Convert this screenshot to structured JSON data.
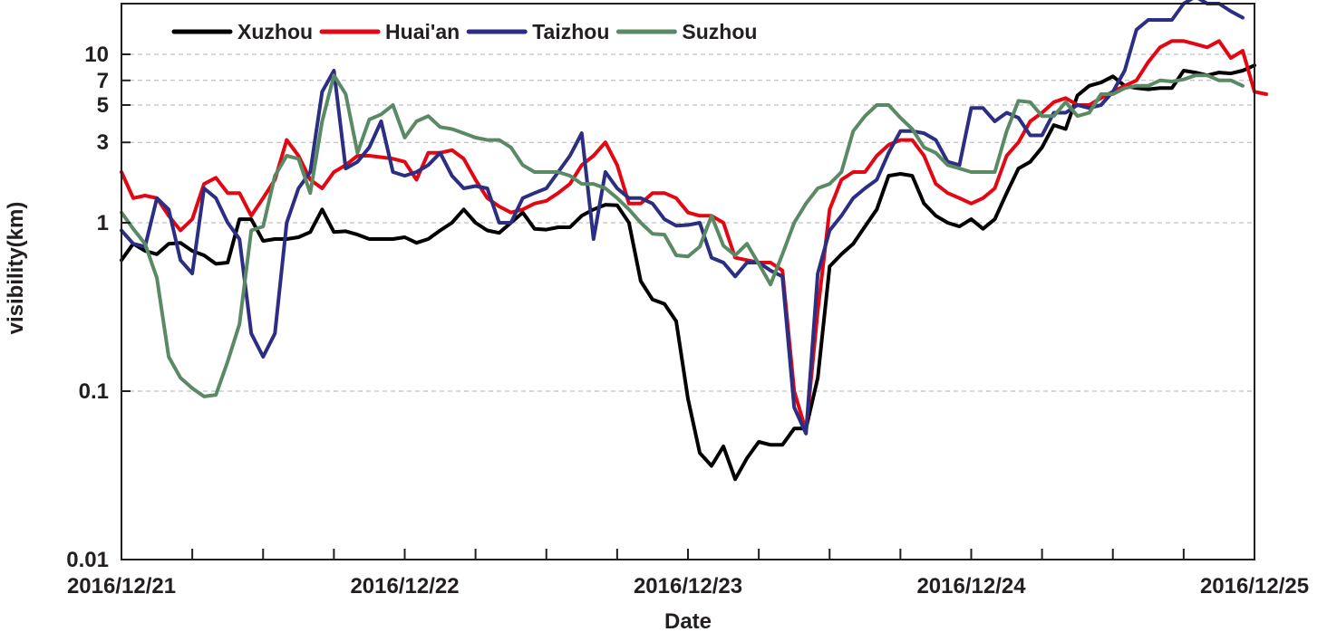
{
  "chart_data": {
    "type": "line",
    "title": "",
    "xlabel": "Date",
    "ylabel": "visibility(km)",
    "y_scale": "log",
    "ylim": [
      0.01,
      20
    ],
    "xlim": [
      0,
      96
    ],
    "x_unit": "hours from 2016/12/21 00:00",
    "grid": "horizontal dashed at 0.1, 1, 3, 5, 7, 10",
    "legend_position": "top-left",
    "x_ticks": [
      {
        "pos": 0,
        "label": "2016/12/21"
      },
      {
        "pos": 24,
        "label": "2016/12/22"
      },
      {
        "pos": 48,
        "label": "2016/12/23"
      },
      {
        "pos": 72,
        "label": "2016/12/24"
      },
      {
        "pos": 96,
        "label": "2016/12/25"
      }
    ],
    "x_minor_ticks": [
      6,
      12,
      18,
      30,
      36,
      42,
      54,
      60,
      66,
      78,
      84,
      90
    ],
    "y_ticks": [
      {
        "value": 0.01,
        "label": "0.01"
      },
      {
        "value": 0.1,
        "label": "0.1"
      },
      {
        "value": 1,
        "label": "1"
      },
      {
        "value": 3,
        "label": "3"
      },
      {
        "value": 5,
        "label": "5"
      },
      {
        "value": 7,
        "label": "7"
      },
      {
        "value": 10,
        "label": "10"
      }
    ],
    "series": [
      {
        "name": "Xuzhou",
        "color": "#000000",
        "values": [
          0.6,
          0.75,
          0.68,
          0.65,
          0.75,
          0.76,
          0.68,
          0.64,
          0.57,
          0.58,
          1.05,
          1.05,
          0.78,
          0.8,
          0.8,
          0.82,
          0.88,
          1.2,
          0.88,
          0.89,
          0.85,
          0.8,
          0.8,
          0.8,
          0.82,
          0.76,
          0.8,
          0.9,
          1.0,
          1.2,
          1.0,
          0.9,
          0.87,
          1.0,
          1.15,
          0.92,
          0.91,
          0.94,
          0.94,
          1.1,
          1.2,
          1.28,
          1.27,
          1.0,
          0.45,
          0.35,
          0.33,
          0.26,
          0.09,
          0.043,
          0.036,
          0.047,
          0.03,
          0.04,
          0.05,
          0.048,
          0.048,
          0.06,
          0.06,
          0.12,
          0.55,
          0.65,
          0.75,
          0.95,
          1.2,
          1.9,
          1.95,
          1.9,
          1.3,
          1.1,
          1.0,
          0.95,
          1.05,
          0.92,
          1.05,
          1.5,
          2.1,
          2.3,
          2.8,
          3.8,
          3.6,
          5.7,
          6.5,
          6.8,
          7.4,
          6.5,
          6.3,
          6.2,
          6.3,
          6.3,
          8.0,
          7.8,
          7.5,
          7.8,
          7.7,
          8.0,
          8.6
        ]
      },
      {
        "name": "Huai'an",
        "color": "#e30613",
        "values": [
          2.0,
          1.4,
          1.45,
          1.4,
          1.1,
          0.9,
          1.05,
          1.7,
          1.85,
          1.5,
          1.5,
          1.1,
          1.4,
          1.8,
          3.1,
          2.5,
          1.8,
          1.6,
          2.0,
          2.2,
          2.5,
          2.5,
          2.45,
          2.4,
          2.3,
          1.8,
          2.6,
          2.6,
          2.7,
          2.4,
          1.8,
          1.4,
          1.25,
          1.15,
          1.2,
          1.3,
          1.35,
          1.5,
          1.7,
          2.2,
          2.5,
          3.0,
          2.2,
          1.3,
          1.3,
          1.5,
          1.5,
          1.4,
          1.15,
          1.1,
          1.1,
          1.0,
          0.62,
          0.6,
          0.58,
          0.58,
          0.52,
          0.1,
          0.058,
          0.3,
          1.2,
          1.8,
          2.0,
          2.0,
          2.5,
          2.9,
          3.1,
          3.1,
          2.5,
          1.7,
          1.5,
          1.4,
          1.3,
          1.4,
          1.6,
          2.5,
          3.0,
          4.0,
          4.5,
          5.2,
          5.5,
          5.0,
          5.0,
          5.5,
          6.0,
          6.5,
          7.0,
          9.0,
          11.0,
          12.0,
          12.0,
          11.5,
          11.0,
          12.0,
          9.5,
          10.5,
          6.0,
          5.8
        ]
      },
      {
        "name": "Taizhou",
        "color": "#2b2e83",
        "values": [
          0.9,
          0.75,
          0.72,
          1.4,
          1.2,
          0.6,
          0.5,
          1.6,
          1.4,
          1.0,
          0.8,
          0.22,
          0.16,
          0.22,
          1.0,
          1.6,
          2.0,
          6.0,
          8.0,
          2.1,
          2.3,
          2.8,
          4.0,
          2.0,
          1.9,
          2.0,
          2.2,
          2.6,
          1.9,
          1.6,
          1.65,
          1.6,
          1.0,
          1.0,
          1.4,
          1.5,
          1.6,
          2.0,
          2.5,
          3.4,
          0.8,
          2.0,
          1.6,
          1.4,
          1.4,
          1.3,
          1.05,
          0.96,
          0.97,
          1.0,
          0.62,
          0.58,
          0.48,
          0.58,
          0.58,
          0.52,
          0.48,
          0.08,
          0.056,
          0.5,
          0.9,
          1.1,
          1.4,
          1.6,
          1.8,
          2.6,
          3.5,
          3.5,
          3.4,
          3.1,
          2.3,
          2.2,
          4.8,
          4.8,
          4.0,
          4.5,
          4.2,
          3.3,
          3.3,
          4.5,
          4.5,
          5.0,
          4.8,
          5.0,
          6.0,
          8.0,
          14.0,
          16.0,
          16.0,
          16.0,
          20.0,
          22.0,
          20.0,
          20.0,
          18.0,
          16.5
        ]
      },
      {
        "name": "Suzhou",
        "color": "#5a8a64",
        "values": [
          1.15,
          0.92,
          0.75,
          0.47,
          0.16,
          0.12,
          0.104,
          0.093,
          0.095,
          0.15,
          0.25,
          0.9,
          0.95,
          1.9,
          2.5,
          2.4,
          1.5,
          4.0,
          7.5,
          5.8,
          2.6,
          4.1,
          4.4,
          5.0,
          3.2,
          4.0,
          4.3,
          3.7,
          3.6,
          3.4,
          3.2,
          3.1,
          3.1,
          2.8,
          2.2,
          2.0,
          2.0,
          2.0,
          1.9,
          1.7,
          1.7,
          1.6,
          1.4,
          1.2,
          1.0,
          0.86,
          0.85,
          0.64,
          0.63,
          0.72,
          1.1,
          0.73,
          0.64,
          0.75,
          0.57,
          0.43,
          0.65,
          1.0,
          1.3,
          1.6,
          1.7,
          2.0,
          3.5,
          4.3,
          5.0,
          5.0,
          4.2,
          3.6,
          2.8,
          2.6,
          2.2,
          2.1,
          2.0,
          2.0,
          2.0,
          3.5,
          5.3,
          5.2,
          4.3,
          4.3,
          5.2,
          4.3,
          4.5,
          5.8,
          5.8,
          6.3,
          6.5,
          6.5,
          7.0,
          6.9,
          7.1,
          7.5,
          7.5,
          7.0,
          7.0,
          6.5
        ]
      }
    ]
  }
}
